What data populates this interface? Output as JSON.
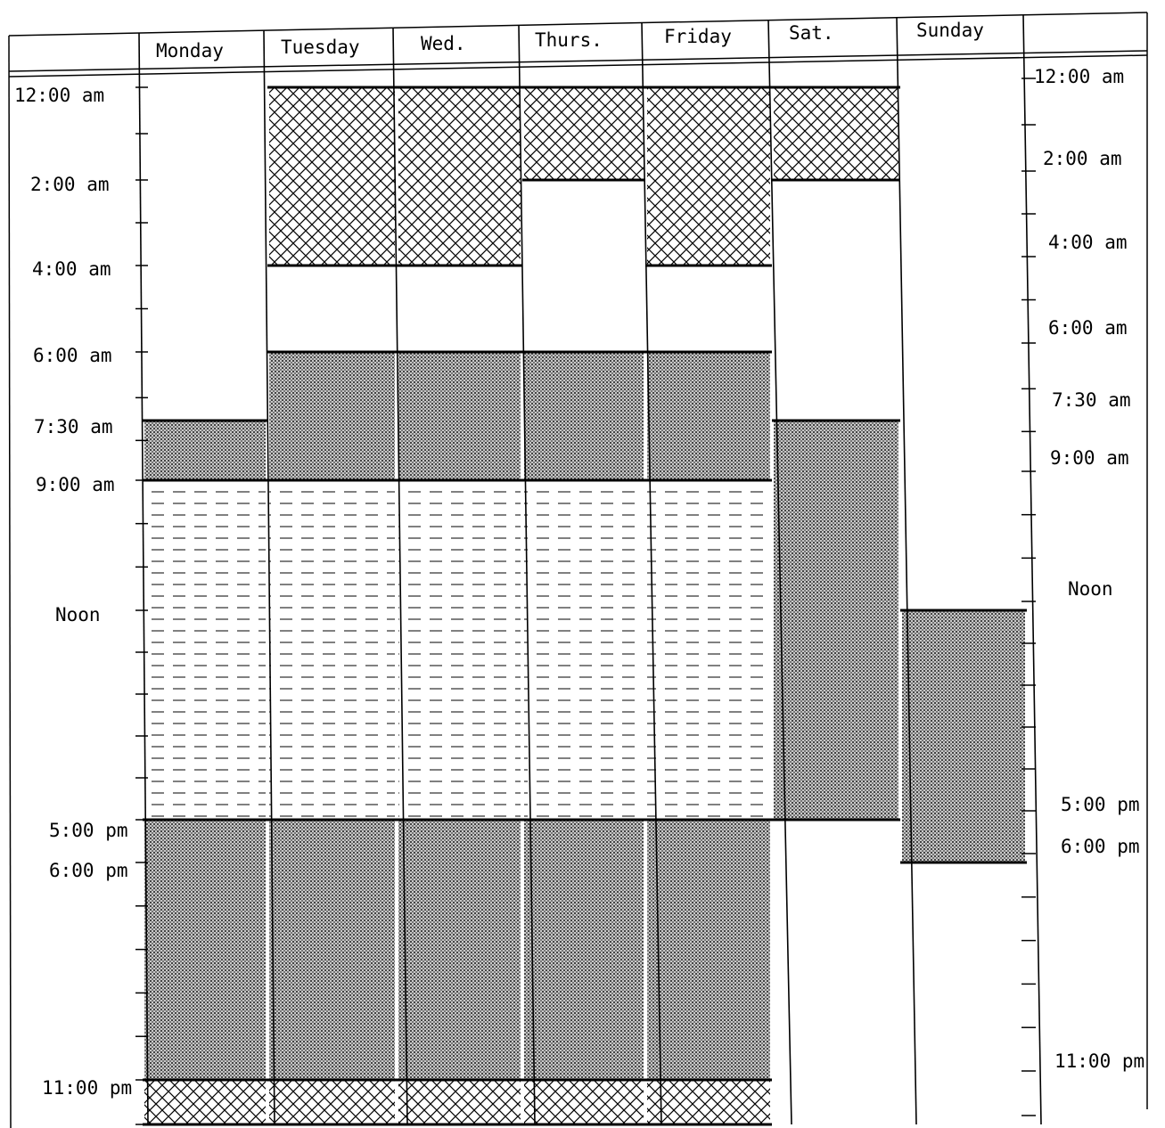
{
  "colors": {
    "ink": "#000000",
    "paper": "#ffffff",
    "crosshatch": "#000000",
    "dotted_fill": "#bfbfbf",
    "dashed_fill": "#ffffff"
  },
  "days": [
    "Monday",
    "Tuesday",
    "Wed.",
    "Thurs.",
    "Friday",
    "Sat.",
    "Sunday"
  ],
  "left_time_labels": [
    "12:00 am",
    "2:00 am",
    "4:00 am",
    "6:00 am",
    "7:30 am",
    "9:00 am",
    "Noon",
    "5:00 pm",
    "6:00 pm",
    "11:00 pm"
  ],
  "right_time_labels": [
    "12:00 am",
    "2:00 am",
    "4:00 am",
    "6:00 am",
    "7:30 am",
    "9:00 am",
    "Noon",
    "5:00 pm",
    "6:00 pm",
    "11:00 pm"
  ],
  "blocks": [
    {
      "day": 0,
      "start_hour": 7.5,
      "end_hour": 9,
      "pattern": "dotted"
    },
    {
      "day": 0,
      "start_hour": 9,
      "end_hour": 17,
      "pattern": "dashed"
    },
    {
      "day": 0,
      "start_hour": 17,
      "end_hour": 23,
      "pattern": "dotted"
    },
    {
      "day": 0,
      "start_hour": 23,
      "end_hour": 24,
      "pattern": "crosshatch"
    },
    {
      "day": 1,
      "start_hour": 0,
      "end_hour": 4,
      "pattern": "crosshatch"
    },
    {
      "day": 1,
      "start_hour": 6,
      "end_hour": 9,
      "pattern": "dotted"
    },
    {
      "day": 1,
      "start_hour": 9,
      "end_hour": 17,
      "pattern": "dashed"
    },
    {
      "day": 1,
      "start_hour": 17,
      "end_hour": 23,
      "pattern": "dotted"
    },
    {
      "day": 1,
      "start_hour": 23,
      "end_hour": 24,
      "pattern": "crosshatch"
    },
    {
      "day": 2,
      "start_hour": 0,
      "end_hour": 4,
      "pattern": "crosshatch"
    },
    {
      "day": 2,
      "start_hour": 6,
      "end_hour": 9,
      "pattern": "dotted"
    },
    {
      "day": 2,
      "start_hour": 9,
      "end_hour": 17,
      "pattern": "dashed"
    },
    {
      "day": 2,
      "start_hour": 17,
      "end_hour": 23,
      "pattern": "dotted"
    },
    {
      "day": 2,
      "start_hour": 23,
      "end_hour": 24,
      "pattern": "crosshatch"
    },
    {
      "day": 3,
      "start_hour": 0,
      "end_hour": 2,
      "pattern": "crosshatch"
    },
    {
      "day": 3,
      "start_hour": 6,
      "end_hour": 9,
      "pattern": "dotted"
    },
    {
      "day": 3,
      "start_hour": 9,
      "end_hour": 17,
      "pattern": "dashed"
    },
    {
      "day": 3,
      "start_hour": 17,
      "end_hour": 23,
      "pattern": "dotted"
    },
    {
      "day": 3,
      "start_hour": 23,
      "end_hour": 24,
      "pattern": "crosshatch"
    },
    {
      "day": 4,
      "start_hour": 0,
      "end_hour": 4,
      "pattern": "crosshatch"
    },
    {
      "day": 4,
      "start_hour": 6,
      "end_hour": 9,
      "pattern": "dotted"
    },
    {
      "day": 4,
      "start_hour": 9,
      "end_hour": 17,
      "pattern": "dashed"
    },
    {
      "day": 4,
      "start_hour": 17,
      "end_hour": 23,
      "pattern": "dotted"
    },
    {
      "day": 4,
      "start_hour": 23,
      "end_hour": 24,
      "pattern": "crosshatch"
    },
    {
      "day": 5,
      "start_hour": 0,
      "end_hour": 2,
      "pattern": "crosshatch"
    },
    {
      "day": 5,
      "start_hour": 7.5,
      "end_hour": 17,
      "pattern": "dotted"
    },
    {
      "day": 6,
      "start_hour": 12,
      "end_hour": 18,
      "pattern": "dotted"
    }
  ]
}
